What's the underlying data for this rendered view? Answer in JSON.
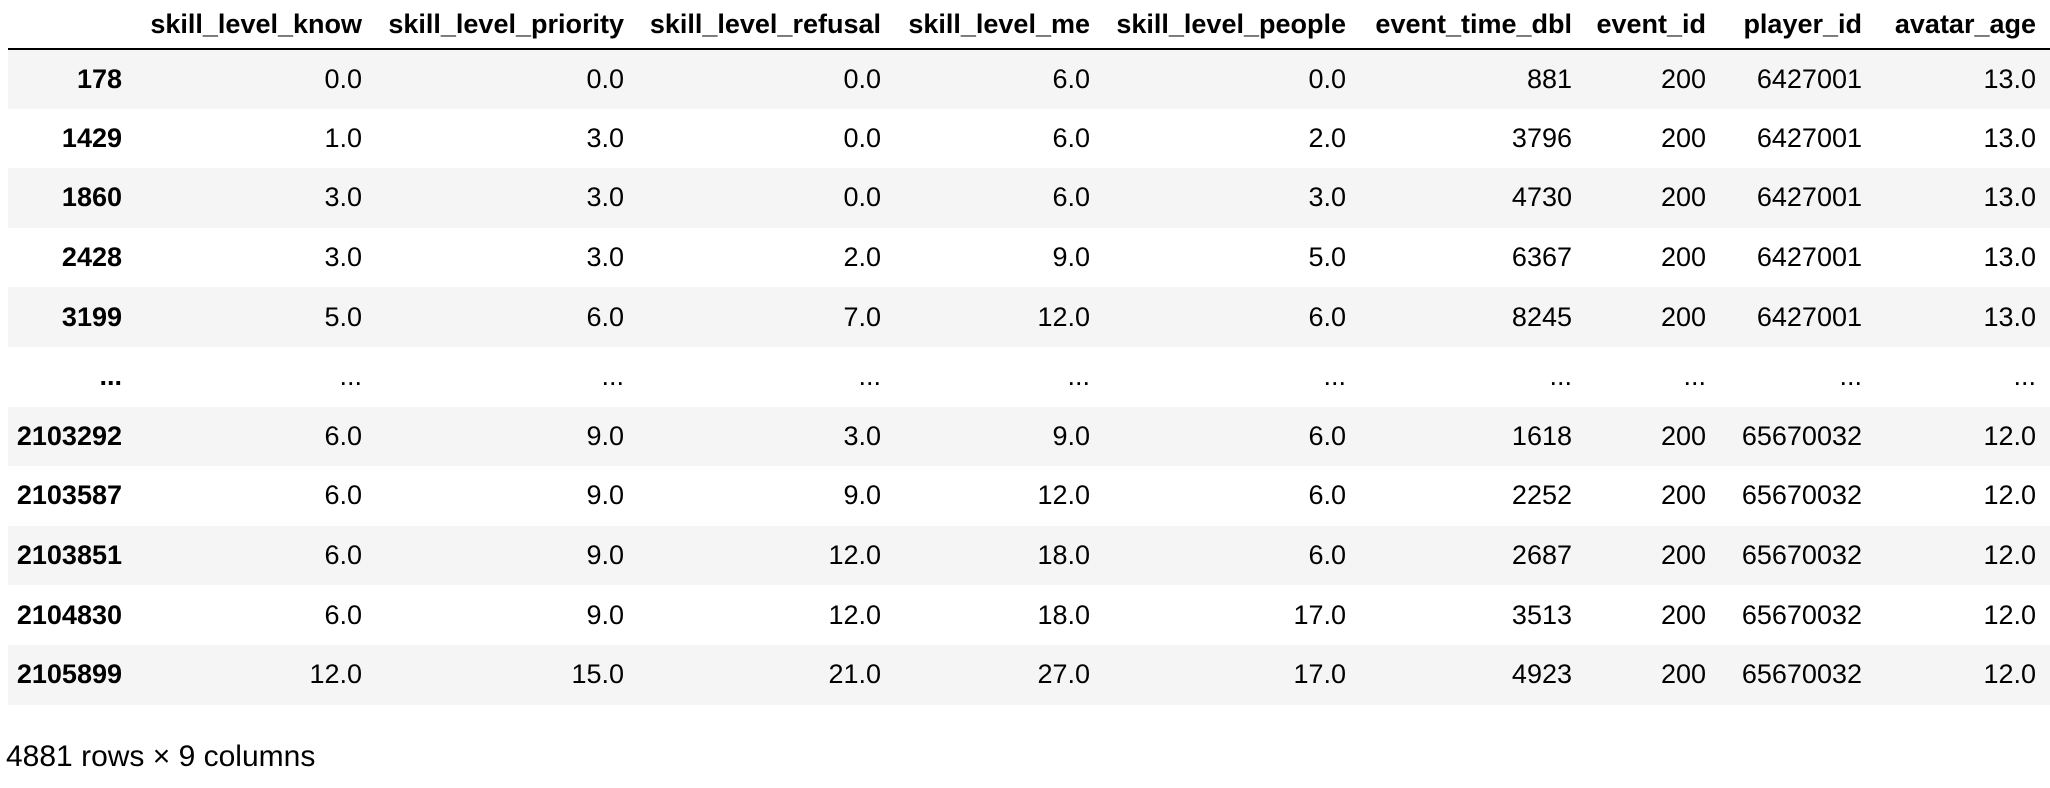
{
  "table": {
    "index_header": "",
    "columns": [
      "skill_level_know",
      "skill_level_priority",
      "skill_level_refusal",
      "skill_level_me",
      "skill_level_people",
      "event_time_dbl",
      "event_id",
      "player_id",
      "avatar_age"
    ],
    "rows": [
      {
        "index": "178",
        "cells": [
          "0.0",
          "0.0",
          "0.0",
          "6.0",
          "0.0",
          "881",
          "200",
          "6427001",
          "13.0"
        ]
      },
      {
        "index": "1429",
        "cells": [
          "1.0",
          "3.0",
          "0.0",
          "6.0",
          "2.0",
          "3796",
          "200",
          "6427001",
          "13.0"
        ]
      },
      {
        "index": "1860",
        "cells": [
          "3.0",
          "3.0",
          "0.0",
          "6.0",
          "3.0",
          "4730",
          "200",
          "6427001",
          "13.0"
        ]
      },
      {
        "index": "2428",
        "cells": [
          "3.0",
          "3.0",
          "2.0",
          "9.0",
          "5.0",
          "6367",
          "200",
          "6427001",
          "13.0"
        ]
      },
      {
        "index": "3199",
        "cells": [
          "5.0",
          "6.0",
          "7.0",
          "12.0",
          "6.0",
          "8245",
          "200",
          "6427001",
          "13.0"
        ]
      },
      {
        "index": "...",
        "cells": [
          "...",
          "...",
          "...",
          "...",
          "...",
          "...",
          "...",
          "...",
          "..."
        ]
      },
      {
        "index": "2103292",
        "cells": [
          "6.0",
          "9.0",
          "3.0",
          "9.0",
          "6.0",
          "1618",
          "200",
          "65670032",
          "12.0"
        ]
      },
      {
        "index": "2103587",
        "cells": [
          "6.0",
          "9.0",
          "9.0",
          "12.0",
          "6.0",
          "2252",
          "200",
          "65670032",
          "12.0"
        ]
      },
      {
        "index": "2103851",
        "cells": [
          "6.0",
          "9.0",
          "12.0",
          "18.0",
          "6.0",
          "2687",
          "200",
          "65670032",
          "12.0"
        ]
      },
      {
        "index": "2104830",
        "cells": [
          "6.0",
          "9.0",
          "12.0",
          "18.0",
          "17.0",
          "3513",
          "200",
          "65670032",
          "12.0"
        ]
      },
      {
        "index": "2105899",
        "cells": [
          "12.0",
          "15.0",
          "21.0",
          "27.0",
          "17.0",
          "4923",
          "200",
          "65670032",
          "12.0"
        ]
      }
    ]
  },
  "footer": {
    "shape_text": "4881 rows × 9 columns"
  },
  "colors": {
    "row_stripe": "#f5f5f5",
    "row_plain": "#ffffff",
    "header_rule": "#000000",
    "text": "#000000"
  }
}
